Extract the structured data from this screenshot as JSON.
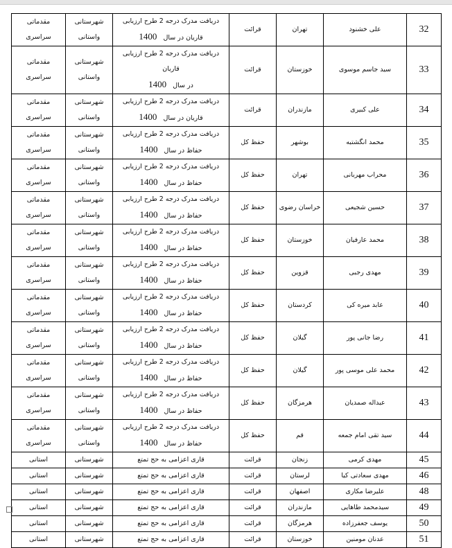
{
  "rows_tall": [
    {
      "num": "32",
      "name": "علی خشنود",
      "province": "تهران",
      "field": "قرائت",
      "desc1": "دریافت مدرک درجه 2 طرح ارزیابی",
      "desc2": "قاریان در سال",
      "year": "1400",
      "level1a": "شهرستانی",
      "level1b": "واستانی",
      "level2a": "مقدماتی",
      "level2b": "سراسری"
    },
    {
      "num": "33",
      "name": "سید جاسم موسوی",
      "province": "خوزستان",
      "field": "قرائت",
      "desc1": "دریافت مدرک درجه 2 طرح ارزیابی قاریان",
      "desc2": "در سال",
      "year": "1400",
      "level1a": "شهرستانی",
      "level1b": "واستانی",
      "level2a": "مقدماتی",
      "level2b": "سراسری"
    },
    {
      "num": "34",
      "name": "علی کبیری",
      "province": "مازندران",
      "field": "قرائت",
      "desc1": "دریافت مدرک درجه 2 طرح ارزیابی",
      "desc2": "قاریان در سال",
      "year": "1400",
      "level1a": "شهرستانی",
      "level1b": "واستانی",
      "level2a": "مقدماتی",
      "level2b": "سراسری"
    },
    {
      "num": "35",
      "name": "محمد انگشتبه",
      "province": "بوشهر",
      "field": "حفظ کل",
      "desc1": "دریافت مدرک درجه 2 طرح ارزیابی",
      "desc2": "حفاظ در سال",
      "year": "1400",
      "level1a": "شهرستانی",
      "level1b": "واستانی",
      "level2a": "مقدماتی",
      "level2b": "سراسری"
    },
    {
      "num": "36",
      "name": "محراب مهربانی",
      "province": "تهران",
      "field": "حفظ کل",
      "desc1": "دریافت مدرک درجه 2 طرح ارزیابی",
      "desc2": "حفاظ در سال",
      "year": "1400",
      "level1a": "شهرستانی",
      "level1b": "واستانی",
      "level2a": "مقدماتی",
      "level2b": "سراسری"
    },
    {
      "num": "37",
      "name": "حسین شجیعی",
      "province": "خراسان رضوی",
      "field": "حفظ کل",
      "desc1": "دریافت مدرک درجه 2 طرح ارزیابی",
      "desc2": "حفاظ در سال",
      "year": "1400",
      "level1a": "شهرستانی",
      "level1b": "واستانی",
      "level2a": "مقدماتی",
      "level2b": "سراسری"
    },
    {
      "num": "38",
      "name": "محمد عارفیان",
      "province": "خوزستان",
      "field": "حفظ کل",
      "desc1": "دریافت مدرک درجه 2 طرح ارزیابی",
      "desc2": "حفاظ در سال",
      "year": "1400",
      "level1a": "شهرستانی",
      "level1b": "واستانی",
      "level2a": "مقدماتی",
      "level2b": "سراسری"
    },
    {
      "num": "39",
      "name": "مهدی رجبی",
      "province": "قزوین",
      "field": "حفظ کل",
      "desc1": "دریافت مدرک درجه 2 طرح ارزیابی",
      "desc2": "حفاظ در سال",
      "year": "1400",
      "level1a": "شهرستانی",
      "level1b": "واستانی",
      "level2a": "مقدماتی",
      "level2b": "سراسری"
    },
    {
      "num": "40",
      "name": "عابد میره کی",
      "province": "کردستان",
      "field": "حفظ کل",
      "desc1": "دریافت مدرک درجه 2 طرح ارزیابی",
      "desc2": "حفاظ در سال",
      "year": "1400",
      "level1a": "شهرستانی",
      "level1b": "واستانی",
      "level2a": "مقدماتی",
      "level2b": "سراسری"
    },
    {
      "num": "41",
      "name": "رضا جانی پور",
      "province": "گیلان",
      "field": "حفظ کل",
      "desc1": "دریافت مدرک درجه 2 طرح ارزیابی",
      "desc2": "حفاظ در سال",
      "year": "1400",
      "level1a": "شهرستانی",
      "level1b": "واستانی",
      "level2a": "مقدماتی",
      "level2b": "سراسری"
    },
    {
      "num": "42",
      "name": "محمد علی موسی پور",
      "province": "گیلان",
      "field": "حفظ کل",
      "desc1": "دریافت مدرک درجه 2 طرح ارزیابی",
      "desc2": "حفاظ در سال",
      "year": "1400",
      "level1a": "شهرستانی",
      "level1b": "واستانی",
      "level2a": "مقدماتی",
      "level2b": "سراسری"
    },
    {
      "num": "43",
      "name": "عبداله صمدیان",
      "province": "هرمزگان",
      "field": "حفظ کل",
      "desc1": "دریافت مدرک درجه 2 طرح ارزیابی",
      "desc2": "حفاظ در سال",
      "year": "1400",
      "level1a": "شهرستانی",
      "level1b": "واستانی",
      "level2a": "مقدماتی",
      "level2b": "سراسری"
    },
    {
      "num": "44",
      "name": "سید تقی امام جمعه",
      "province": "قم",
      "field": "حفظ کل",
      "desc1": "دریافت مدرک درجه 2 طرح ارزیابی",
      "desc2": "حفاظ در سال",
      "year": "1400",
      "level1a": "شهرستانی",
      "level1b": "واستانی",
      "level2a": "مقدماتی",
      "level2b": "سراسری"
    }
  ],
  "rows_short": [
    {
      "num": "45",
      "name": "مهدی کرمی",
      "province": "زنجان",
      "field": "قرائت",
      "desc": "قاری اعزامی به حج تمتع",
      "level1": "شهرستانی",
      "level2": "استانی"
    },
    {
      "num": "46",
      "name": "مهدی سعادتی کیا",
      "province": "لرستان",
      "field": "قرائت",
      "desc": "قاری اعزامی به حج تمتع",
      "level1": "شهرستانی",
      "level2": "استانی"
    },
    {
      "num": "48",
      "name": "علیرضا مکاری",
      "province": "اصفهان",
      "field": "قرائت",
      "desc": "قاری اعزامی به حج تمتع",
      "level1": "شهرستانی",
      "level2": "استانی"
    },
    {
      "num": "49",
      "name": "سیدمحمد طاهایی",
      "province": "مازندران",
      "field": "قرائت",
      "desc": "قاری اعزامی به حج تمتع",
      "level1": "شهرستانی",
      "level2": "استانی"
    },
    {
      "num": "50",
      "name": "یوسف جعفرزاده",
      "province": "هرمزگان",
      "field": "قرائت",
      "desc": "قاری اعزامی به حج تمتع",
      "level1": "شهرستانی",
      "level2": "استانی"
    },
    {
      "num": "51",
      "name": "عدنان مومنین",
      "province": "خوزستان",
      "field": "قرائت",
      "desc": "قاری اعزامی به حج تمتع",
      "level1": "شهرستانی",
      "level2": "استانی"
    }
  ]
}
